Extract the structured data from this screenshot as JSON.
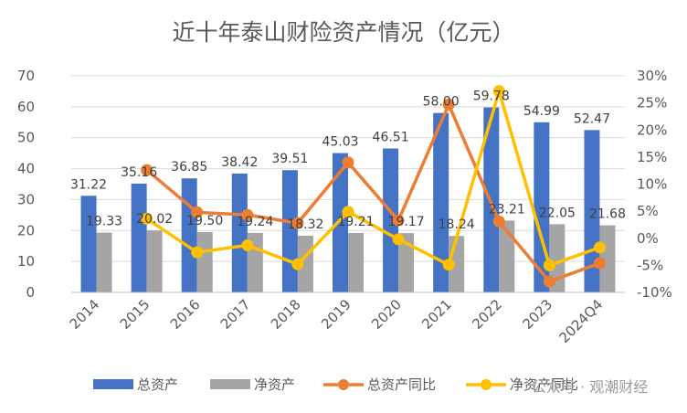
{
  "chart_data": {
    "type": "bar",
    "title": "近十年泰山财险资产情况（亿元）",
    "categories": [
      "2014",
      "2015",
      "2016",
      "2017",
      "2018",
      "2019",
      "2020",
      "2021",
      "2022",
      "2023",
      "2024Q4"
    ],
    "series": [
      {
        "name": "总资产",
        "kind": "bar",
        "axis": "left",
        "color": "#4472C4",
        "values": [
          31.22,
          35.16,
          36.85,
          38.42,
          39.51,
          45.03,
          46.51,
          58.0,
          59.78,
          54.99,
          52.47
        ],
        "labels": [
          "31.22",
          "35.16",
          "36.85",
          "38.42",
          "39.51",
          "45.03",
          "46.51",
          "58.00",
          "59.78",
          "54.99",
          "52.47"
        ]
      },
      {
        "name": "净资产",
        "kind": "bar",
        "axis": "left",
        "color": "#A5A5A5",
        "values": [
          19.33,
          20.02,
          19.5,
          19.24,
          18.32,
          19.21,
          19.17,
          18.24,
          23.21,
          22.05,
          21.68
        ],
        "labels": [
          "19.33",
          "20.02",
          "19.50",
          "19.24",
          "18.32",
          "19.21",
          "19.17",
          "18.24",
          "23.21",
          "22.05",
          "21.68"
        ]
      },
      {
        "name": "总资产同比",
        "kind": "line",
        "axis": "right",
        "color": "#ED7D31",
        "values": [
          null,
          12.6,
          4.8,
          4.3,
          2.8,
          14.0,
          3.3,
          24.7,
          3.1,
          -8.0,
          -4.6
        ]
      },
      {
        "name": "净资产同比",
        "kind": "line",
        "axis": "right",
        "color": "#FFC000",
        "values": [
          null,
          3.6,
          -2.6,
          -1.3,
          -4.8,
          4.9,
          -0.2,
          -4.9,
          27.2,
          -5.0,
          -1.7
        ]
      }
    ],
    "yleft": {
      "min": 0,
      "max": 70,
      "ticks": [
        "0",
        "10",
        "20",
        "30",
        "40",
        "50",
        "60",
        "70"
      ]
    },
    "yright": {
      "min": -10,
      "max": 30,
      "ticks": [
        "-10%",
        "-5%",
        "0%",
        "5%",
        "10%",
        "15%",
        "20%",
        "25%",
        "30%"
      ]
    },
    "grid": true,
    "legend": "bottom"
  },
  "watermark": "公众号 · 观潮财经"
}
